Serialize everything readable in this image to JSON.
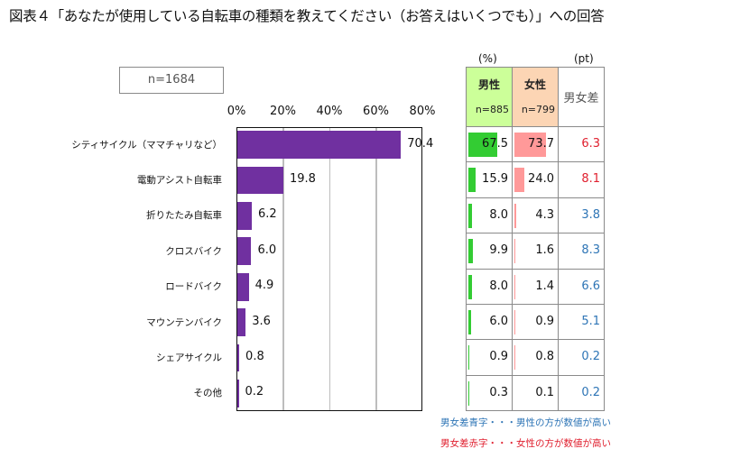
{
  "title": "図表４「あなたが使用している自転車の種類を教えてください（お答えはいくつでも）」への回答",
  "sample_box": "n=1684",
  "table": {
    "unit_pct": "(%)",
    "unit_pt": "(pt)",
    "headers": {
      "male": {
        "name": "男性",
        "n": "n=885",
        "color": "#ccff99"
      },
      "female": {
        "name": "女性",
        "n": "n=799",
        "color": "#fcd5b4"
      },
      "diff": "男女差"
    },
    "colors": {
      "male_bar": "#33cc33",
      "female_bar": "#ff9999",
      "diff_blue": "#2e75b6",
      "diff_red": "#e0202f"
    },
    "rows": [
      {
        "male": 67.5,
        "female": 73.7,
        "diff": "6.3",
        "diff_color": "red"
      },
      {
        "male": 15.9,
        "female": 24.0,
        "diff": "8.1",
        "diff_color": "red"
      },
      {
        "male": 8.0,
        "female": 4.3,
        "diff": "3.8",
        "diff_color": "blue"
      },
      {
        "male": 9.9,
        "female": 1.6,
        "diff": "8.3",
        "diff_color": "blue"
      },
      {
        "male": 8.0,
        "female": 1.4,
        "diff": "6.6",
        "diff_color": "blue"
      },
      {
        "male": 6.0,
        "female": 0.9,
        "diff": "5.1",
        "diff_color": "blue"
      },
      {
        "male": 0.9,
        "female": 0.8,
        "diff": "0.2",
        "diff_color": "blue"
      },
      {
        "male": 0.3,
        "female": 0.1,
        "diff": "0.2",
        "diff_color": "blue"
      }
    ]
  },
  "notes": {
    "blue": "男女差青字・・・男性の方が数値が高い",
    "red": "男女差赤字・・・女性の方が数値が高い"
  },
  "chart_data": {
    "type": "bar",
    "orientation": "horizontal",
    "title": "図表４「あなたが使用している自転車の種類を教えてください（お答えはいくつでも）」への回答",
    "categories": [
      "シティサイクル（ママチャリなど）",
      "電動アシスト自転車",
      "折りたたみ自転車",
      "クロスバイク",
      "ロードバイク",
      "マウンテンバイク",
      "シェアサイクル",
      "その他"
    ],
    "values": [
      70.4,
      19.8,
      6.2,
      6.0,
      4.9,
      3.6,
      0.8,
      0.2
    ],
    "value_labels": [
      "70.4",
      "19.8",
      "6.2",
      "6.0",
      "4.9",
      "3.6",
      "0.8",
      "0.2"
    ],
    "xlim": [
      0,
      80
    ],
    "xticks": [
      "0%",
      "20%",
      "40%",
      "60%",
      "80%"
    ],
    "xtick_values": [
      0,
      20,
      40,
      60,
      80
    ],
    "xlabel": "",
    "ylabel": "",
    "grid": true,
    "bar_color": "#7030a0",
    "sample": "n=1684"
  }
}
